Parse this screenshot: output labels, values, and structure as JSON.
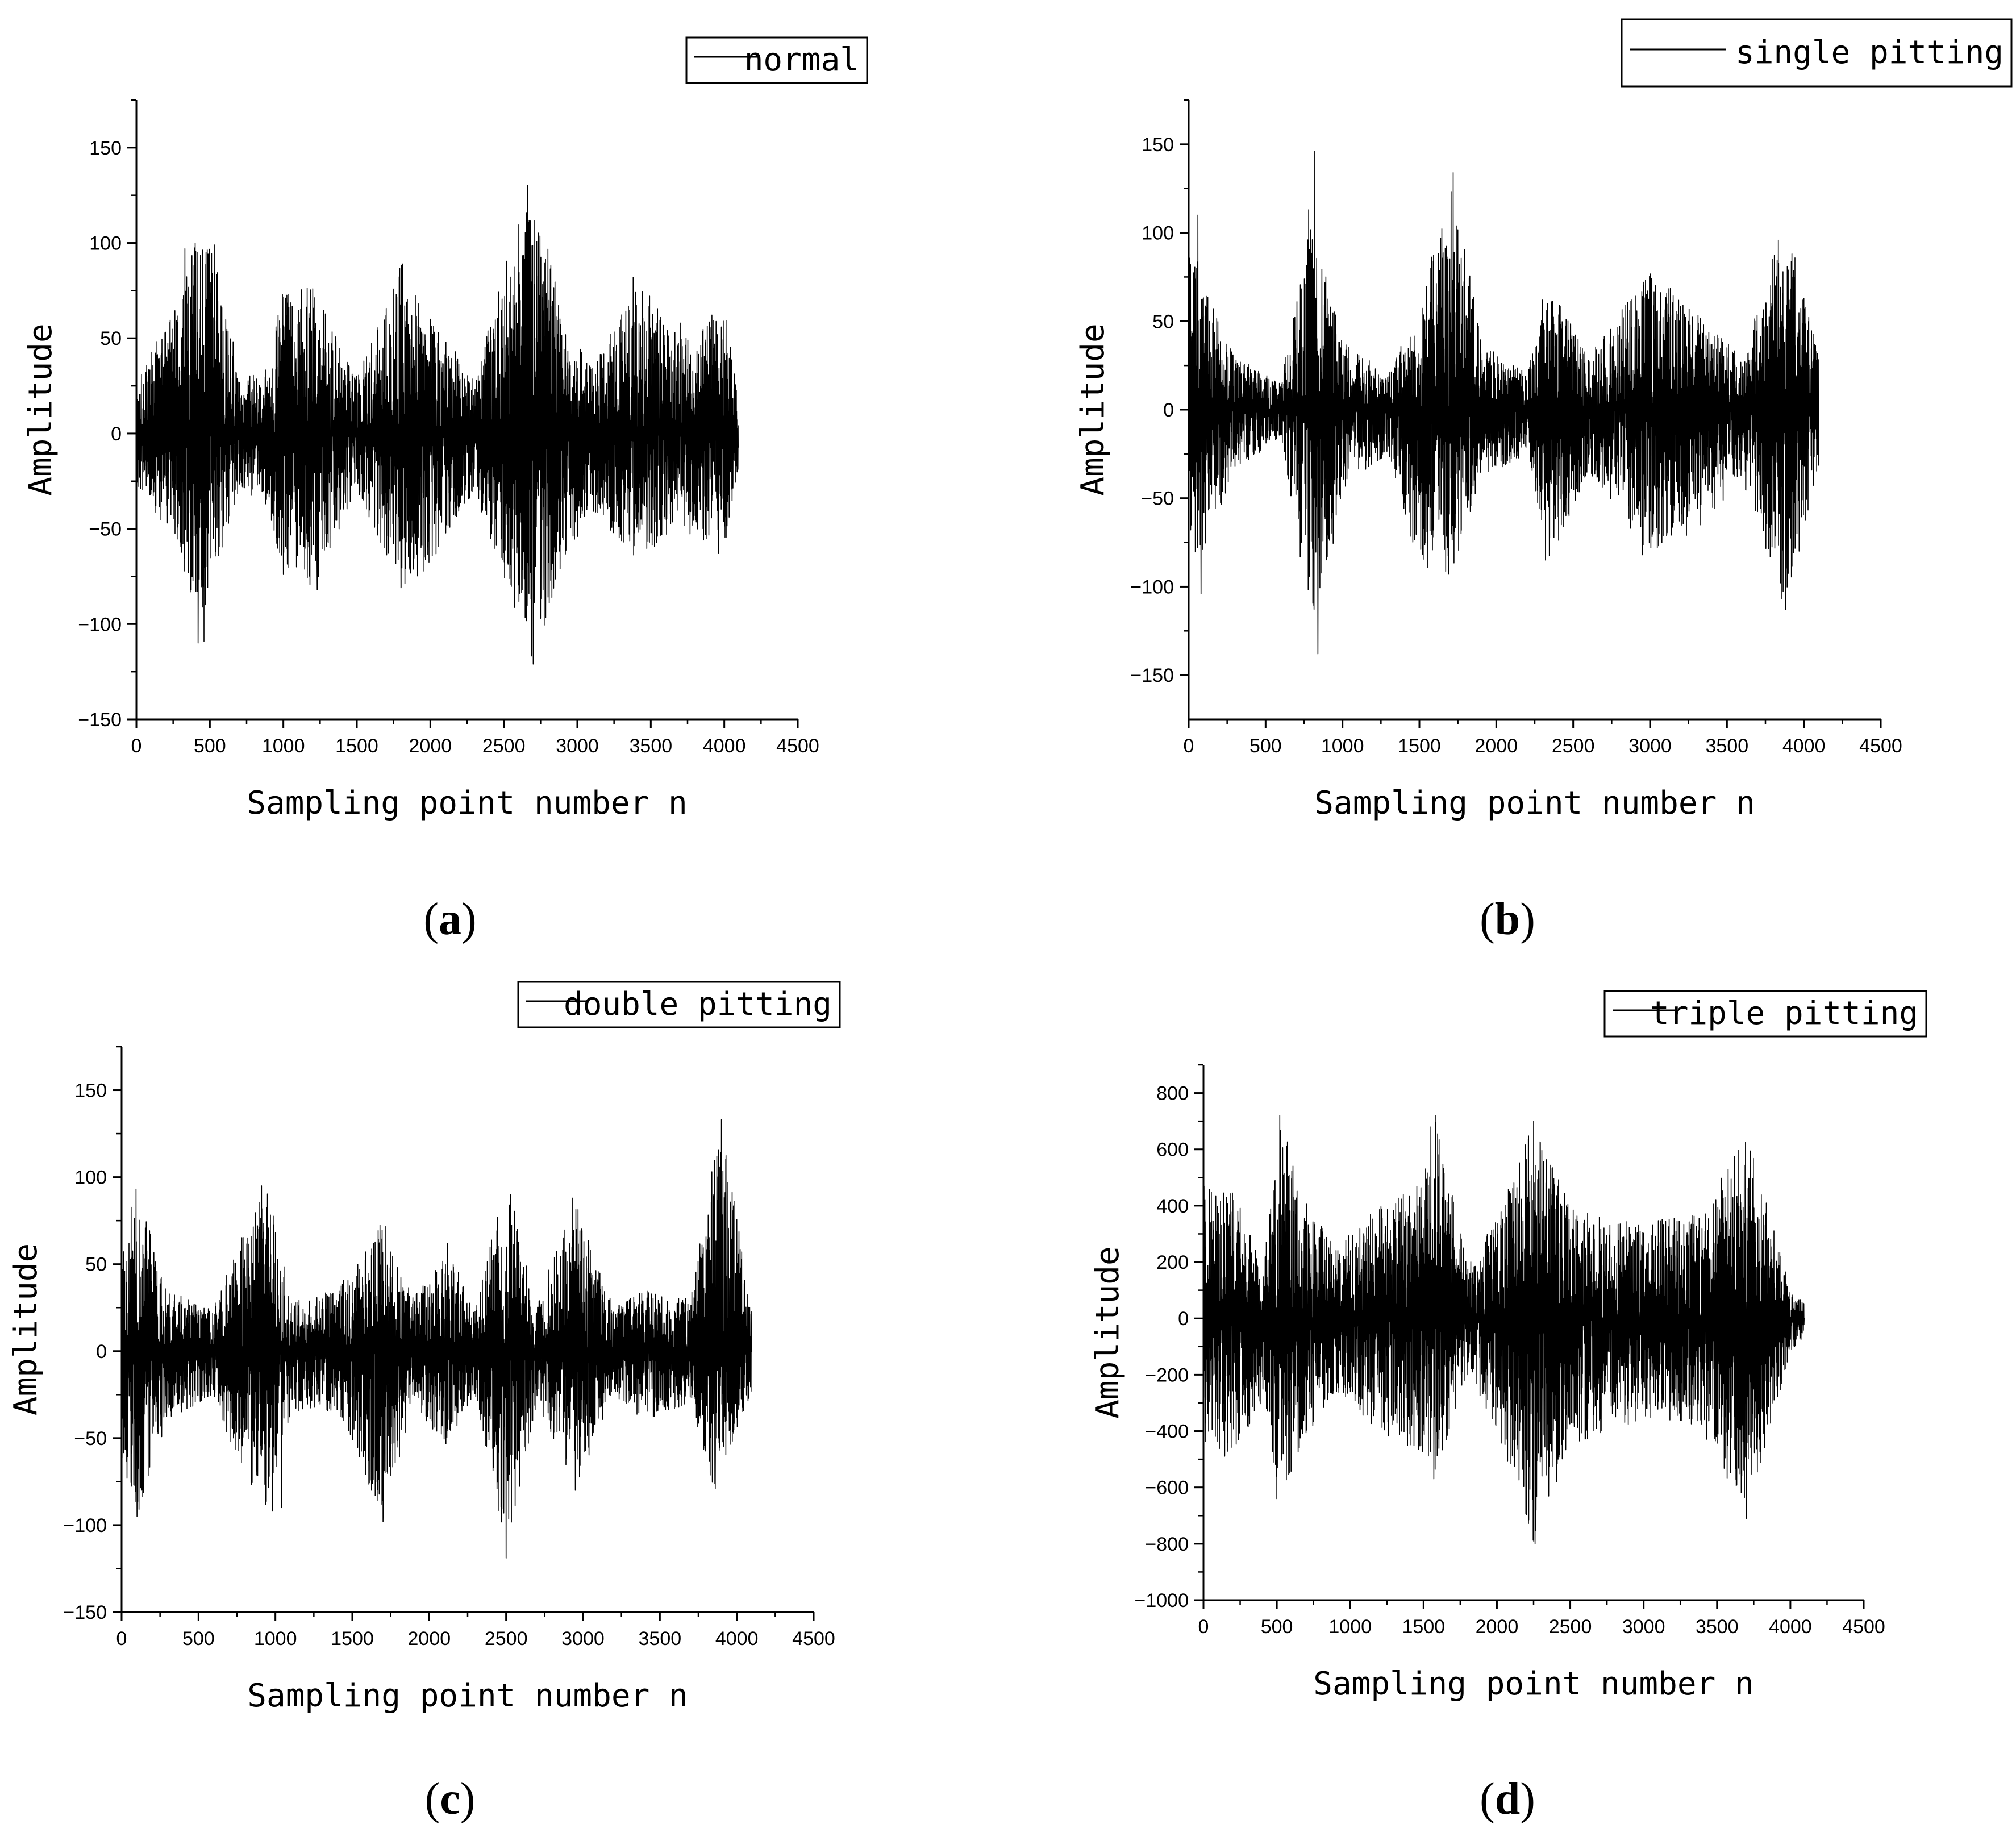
{
  "chart_data": [
    {
      "type": "line",
      "panel_label": "a",
      "legend": [
        "normal"
      ],
      "legend_position": "top-right",
      "xlabel": "Sampling point number n",
      "ylabel": "Amplitude",
      "xlim": [
        0,
        4500
      ],
      "ylim": [
        -150,
        175
      ],
      "x_ticks": [
        0,
        500,
        1000,
        1500,
        2000,
        2500,
        3000,
        3500,
        4000,
        4500
      ],
      "y_ticks": [
        -150,
        -100,
        -50,
        0,
        50,
        100,
        150
      ],
      "grid": false,
      "series": [
        {
          "name": "normal",
          "n_points": 4096,
          "envelope_note_pos": [
            [
              0,
              30
            ],
            [
              300,
              70
            ],
            [
              400,
              100
            ],
            [
              550,
              99
            ],
            [
              700,
              30
            ],
            [
              900,
              35
            ],
            [
              1000,
              78
            ],
            [
              1200,
              76
            ],
            [
              1500,
              30
            ],
            [
              1800,
              89
            ],
            [
              2000,
              60
            ],
            [
              2300,
              30
            ],
            [
              2700,
              142
            ],
            [
              2900,
              60
            ],
            [
              3100,
              35
            ],
            [
              3400,
              82
            ],
            [
              3700,
              50
            ],
            [
              4000,
              67
            ],
            [
              4096,
              20
            ]
          ],
          "envelope_neg": [
            [
              0,
              -30
            ],
            [
              300,
              -60
            ],
            [
              400,
              -110
            ],
            [
              550,
              -70
            ],
            [
              700,
              -30
            ],
            [
              900,
              -40
            ],
            [
              1000,
              -74
            ],
            [
              1200,
              -82
            ],
            [
              1500,
              -30
            ],
            [
              1800,
              -81
            ],
            [
              2000,
              -70
            ],
            [
              2300,
              -30
            ],
            [
              2700,
              -121
            ],
            [
              2900,
              -70
            ],
            [
              3100,
              -40
            ],
            [
              3400,
              -66
            ],
            [
              3700,
              -50
            ],
            [
              4000,
              -63
            ],
            [
              4096,
              -20
            ]
          ],
          "peaks": [
            [
              330,
              97
            ],
            [
              400,
              100
            ],
            [
              530,
              99
            ],
            [
              420,
              -110
            ],
            [
              460,
              -109
            ],
            [
              1000,
              78
            ],
            [
              1000,
              -74
            ],
            [
              1200,
              76
            ],
            [
              1230,
              -82
            ],
            [
              1810,
              89
            ],
            [
              1800,
              -81
            ],
            [
              2000,
              60
            ],
            [
              2700,
              142
            ],
            [
              2700,
              -121
            ],
            [
              2750,
              -97
            ],
            [
              3380,
              82
            ],
            [
              3700,
              58
            ],
            [
              3960,
              67
            ],
            [
              3960,
              -63
            ]
          ]
        }
      ]
    },
    {
      "type": "line",
      "panel_label": "b",
      "legend": [
        "single pitting"
      ],
      "legend_position": "top-right",
      "xlabel": "Sampling point number n",
      "ylabel": "Amplitude",
      "xlim": [
        0,
        4500
      ],
      "ylim": [
        -175,
        175
      ],
      "x_ticks": [
        0,
        500,
        1000,
        1500,
        2000,
        2500,
        3000,
        3500,
        4000,
        4500
      ],
      "y_ticks": [
        -150,
        -100,
        -50,
        0,
        50,
        100,
        150
      ],
      "grid": false,
      "series": [
        {
          "name": "single pitting",
          "n_points": 4096,
          "envelope_note_pos": [
            [
              0,
              110
            ],
            [
              100,
              70
            ],
            [
              300,
              30
            ],
            [
              600,
              15
            ],
            [
              800,
              110
            ],
            [
              1000,
              40
            ],
            [
              1300,
              20
            ],
            [
              1500,
              60
            ],
            [
              1720,
              134
            ],
            [
              1900,
              40
            ],
            [
              2200,
              20
            ],
            [
              2350,
              70
            ],
            [
              2600,
              30
            ],
            [
              3000,
              80
            ],
            [
              3300,
              55
            ],
            [
              3600,
              30
            ],
            [
              3880,
              110
            ],
            [
              4096,
              30
            ]
          ],
          "envelope_neg": [
            [
              0,
              -105
            ],
            [
              100,
              -80
            ],
            [
              300,
              -35
            ],
            [
              600,
              -15
            ],
            [
              820,
              -138
            ],
            [
              1000,
              -45
            ],
            [
              1300,
              -25
            ],
            [
              1500,
              -90
            ],
            [
              1720,
              -93
            ],
            [
              1900,
              -40
            ],
            [
              2200,
              -25
            ],
            [
              2350,
              -85
            ],
            [
              2600,
              -35
            ],
            [
              3000,
              -82
            ],
            [
              3300,
              -70
            ],
            [
              3600,
              -40
            ],
            [
              3880,
              -113
            ],
            [
              4096,
              -35
            ]
          ],
          "peaks": [
            [
              60,
              110
            ],
            [
              80,
              -104
            ],
            [
              820,
              146
            ],
            [
              840,
              -138
            ],
            [
              780,
              113
            ],
            [
              1720,
              134
            ],
            [
              1690,
              -93
            ],
            [
              2300,
              62
            ],
            [
              2320,
              -85
            ],
            [
              2950,
              80
            ],
            [
              2950,
              -82
            ],
            [
              3880,
              110
            ],
            [
              3880,
              -113
            ]
          ]
        }
      ]
    },
    {
      "type": "line",
      "panel_label": "c",
      "legend": [
        "double pitting"
      ],
      "legend_position": "top-right",
      "xlabel": "Sampling point number n",
      "ylabel": "Amplitude",
      "xlim": [
        0,
        4500
      ],
      "ylim": [
        -150,
        175
      ],
      "x_ticks": [
        0,
        500,
        1000,
        1500,
        2000,
        2500,
        3000,
        3500,
        4000,
        4500
      ],
      "y_ticks": [
        -150,
        -100,
        -50,
        0,
        50,
        100,
        150
      ],
      "grid": false,
      "series": [
        {
          "name": "double pitting",
          "n_points": 4096,
          "envelope_note_pos": [
            [
              0,
              60
            ],
            [
              100,
              97
            ],
            [
              300,
              35
            ],
            [
              600,
              25
            ],
            [
              750,
              60
            ],
            [
              950,
              95
            ],
            [
              1100,
              30
            ],
            [
              1400,
              35
            ],
            [
              1700,
              77
            ],
            [
              1900,
              30
            ],
            [
              2100,
              62
            ],
            [
              2300,
              25
            ],
            [
              2500,
              101
            ],
            [
              2700,
              30
            ],
            [
              2950,
              88
            ],
            [
              3200,
              25
            ],
            [
              3400,
              35
            ],
            [
              3700,
              30
            ],
            [
              3850,
              110
            ],
            [
              3900,
              133
            ],
            [
              4096,
              25
            ]
          ],
          "envelope_neg": [
            [
              0,
              -65
            ],
            [
              100,
              -95
            ],
            [
              300,
              -40
            ],
            [
              600,
              -25
            ],
            [
              750,
              -65
            ],
            [
              950,
              -92
            ],
            [
              1100,
              -35
            ],
            [
              1400,
              -35
            ],
            [
              1700,
              -98
            ],
            [
              1900,
              -30
            ],
            [
              2100,
              -55
            ],
            [
              2300,
              -25
            ],
            [
              2500,
              -119
            ],
            [
              2700,
              -30
            ],
            [
              2950,
              -80
            ],
            [
              3200,
              -25
            ],
            [
              3400,
              -40
            ],
            [
              3700,
              -30
            ],
            [
              3850,
              -79
            ],
            [
              4096,
              -25
            ]
          ],
          "peaks": [
            [
              100,
              97
            ],
            [
              100,
              -95
            ],
            [
              910,
              95
            ],
            [
              980,
              -92
            ],
            [
              1040,
              -90
            ],
            [
              1700,
              77
            ],
            [
              1700,
              -98
            ],
            [
              2120,
              62
            ],
            [
              2500,
              101
            ],
            [
              2500,
              -119
            ],
            [
              2930,
              88
            ],
            [
              2950,
              -80
            ],
            [
              3870,
              112
            ],
            [
              3900,
              133
            ],
            [
              3860,
              -79
            ]
          ]
        }
      ]
    },
    {
      "type": "line",
      "panel_label": "d",
      "legend": [
        "triple pitting"
      ],
      "legend_position": "top-right",
      "xlabel": "Sampling point number n",
      "ylabel": "Amplitude",
      "xlim": [
        0,
        4500
      ],
      "ylim": [
        -1000,
        900
      ],
      "x_ticks": [
        0,
        500,
        1000,
        1500,
        2000,
        2500,
        3000,
        3500,
        4000,
        4500
      ],
      "y_ticks": [
        -1000,
        -800,
        -600,
        -400,
        -200,
        0,
        200,
        400,
        600,
        800
      ],
      "grid": false,
      "series": [
        {
          "name": "triple pitting",
          "n_points": 4096,
          "envelope_note_pos": [
            [
              0,
              470
            ],
            [
              200,
              470
            ],
            [
              400,
              200
            ],
            [
              520,
              720
            ],
            [
              700,
              430
            ],
            [
              900,
              250
            ],
            [
              1200,
              400
            ],
            [
              1500,
              500
            ],
            [
              1580,
              720
            ],
            [
              1800,
              200
            ],
            [
              2000,
              350
            ],
            [
              2250,
              700
            ],
            [
              2500,
              400
            ],
            [
              2800,
              350
            ],
            [
              3100,
              350
            ],
            [
              3400,
              380
            ],
            [
              3700,
              680
            ],
            [
              4000,
              100
            ],
            [
              4096,
              60
            ]
          ],
          "envelope_neg": [
            [
              0,
              -450
            ],
            [
              200,
              -510
            ],
            [
              400,
              -300
            ],
            [
              520,
              -640
            ],
            [
              700,
              -430
            ],
            [
              900,
              -260
            ],
            [
              1200,
              -400
            ],
            [
              1500,
              -500
            ],
            [
              1580,
              -570
            ],
            [
              1800,
              -200
            ],
            [
              2000,
              -400
            ],
            [
              2250,
              -800
            ],
            [
              2500,
              -450
            ],
            [
              2800,
              -400
            ],
            [
              3100,
              -350
            ],
            [
              3400,
              -400
            ],
            [
              3700,
              -710
            ],
            [
              4000,
              -120
            ],
            [
              4096,
              -60
            ]
          ],
          "peaks": [
            [
              520,
              720
            ],
            [
              500,
              -640
            ],
            [
              1580,
              720
            ],
            [
              1570,
              -570
            ],
            [
              2250,
              700
            ],
            [
              2260,
              -800
            ],
            [
              3700,
              680
            ],
            [
              3700,
              -710
            ],
            [
              1550,
              680
            ]
          ]
        }
      ]
    }
  ]
}
